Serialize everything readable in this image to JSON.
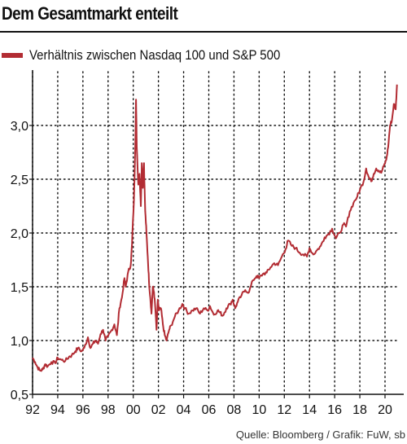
{
  "title": "Dem Gesamtmarkt enteilt",
  "source": "Quelle: Bloomberg / Grafik: FuW, sb",
  "colors": {
    "line": "#b22c33",
    "grid": "#111111",
    "axis": "#111111"
  },
  "chart_data": {
    "type": "line",
    "title": "Dem Gesamtmarkt enteilt",
    "xlabel": "",
    "ylabel": "",
    "xlim": [
      1992,
      2021.1
    ],
    "ylim": [
      0.5,
      3.5
    ],
    "grid": true,
    "legend_position": "top-left",
    "x_ticks": [
      1992,
      1994,
      1996,
      1998,
      2000,
      2002,
      2004,
      2006,
      2008,
      2010,
      2012,
      2014,
      2016,
      2018,
      2020
    ],
    "x_tick_labels": [
      "92",
      "94",
      "96",
      "98",
      "00",
      "02",
      "04",
      "06",
      "08",
      "10",
      "12",
      "14",
      "16",
      "18",
      "20"
    ],
    "y_ticks": [
      0.5,
      1.0,
      1.5,
      2.0,
      2.5,
      3.0
    ],
    "y_tick_labels": [
      "0,5",
      "1,0",
      "1,5",
      "2,0",
      "2,5",
      "3,0"
    ],
    "series": [
      {
        "name": "Verhältnis zwischen Nasdaq 100 und S&P 500",
        "color": "#b22c33",
        "points": [
          [
            1992.0,
            0.84
          ],
          [
            1992.2,
            0.8
          ],
          [
            1992.4,
            0.75
          ],
          [
            1992.6,
            0.72
          ],
          [
            1992.8,
            0.73
          ],
          [
            1993.0,
            0.78
          ],
          [
            1993.2,
            0.76
          ],
          [
            1993.5,
            0.8
          ],
          [
            1993.8,
            0.79
          ],
          [
            1994.0,
            0.84
          ],
          [
            1994.3,
            0.82
          ],
          [
            1994.6,
            0.81
          ],
          [
            1994.9,
            0.85
          ],
          [
            1995.1,
            0.86
          ],
          [
            1995.4,
            0.9
          ],
          [
            1995.6,
            0.93
          ],
          [
            1995.9,
            0.9
          ],
          [
            1996.1,
            0.93
          ],
          [
            1996.4,
            1.03
          ],
          [
            1996.6,
            0.93
          ],
          [
            1996.8,
            0.97
          ],
          [
            1997.0,
            1.0
          ],
          [
            1997.2,
            0.97
          ],
          [
            1997.4,
            1.06
          ],
          [
            1997.6,
            1.1
          ],
          [
            1997.8,
            1.0
          ],
          [
            1998.0,
            1.04
          ],
          [
            1998.3,
            1.1
          ],
          [
            1998.5,
            1.15
          ],
          [
            1998.7,
            1.05
          ],
          [
            1998.9,
            1.3
          ],
          [
            1999.1,
            1.4
          ],
          [
            1999.3,
            1.58
          ],
          [
            1999.4,
            1.5
          ],
          [
            1999.6,
            1.64
          ],
          [
            1999.8,
            1.7
          ],
          [
            1999.9,
            1.9
          ],
          [
            2000.05,
            2.3
          ],
          [
            2000.15,
            2.75
          ],
          [
            2000.22,
            3.24
          ],
          [
            2000.28,
            2.8
          ],
          [
            2000.4,
            2.45
          ],
          [
            2000.5,
            2.55
          ],
          [
            2000.6,
            2.25
          ],
          [
            2000.68,
            2.65
          ],
          [
            2000.76,
            2.42
          ],
          [
            2000.85,
            2.65
          ],
          [
            2000.95,
            2.2
          ],
          [
            2001.05,
            2.0
          ],
          [
            2001.15,
            1.78
          ],
          [
            2001.25,
            1.55
          ],
          [
            2001.35,
            1.4
          ],
          [
            2001.45,
            1.25
          ],
          [
            2001.55,
            1.5
          ],
          [
            2001.65,
            1.45
          ],
          [
            2001.75,
            1.3
          ],
          [
            2001.85,
            1.1
          ],
          [
            2001.95,
            1.38
          ],
          [
            2002.05,
            1.28
          ],
          [
            2002.2,
            1.3
          ],
          [
            2002.35,
            1.15
          ],
          [
            2002.5,
            1.05
          ],
          [
            2002.65,
            1.0
          ],
          [
            2002.85,
            1.1
          ],
          [
            2003.0,
            1.14
          ],
          [
            2003.3,
            1.22
          ],
          [
            2003.6,
            1.28
          ],
          [
            2003.9,
            1.34
          ],
          [
            2004.1,
            1.3
          ],
          [
            2004.4,
            1.25
          ],
          [
            2004.7,
            1.28
          ],
          [
            2005.0,
            1.3
          ],
          [
            2005.3,
            1.25
          ],
          [
            2005.6,
            1.3
          ],
          [
            2005.9,
            1.28
          ],
          [
            2006.1,
            1.32
          ],
          [
            2006.4,
            1.24
          ],
          [
            2006.7,
            1.28
          ],
          [
            2006.9,
            1.26
          ],
          [
            2007.1,
            1.23
          ],
          [
            2007.4,
            1.3
          ],
          [
            2007.7,
            1.34
          ],
          [
            2007.9,
            1.38
          ],
          [
            2008.1,
            1.3
          ],
          [
            2008.3,
            1.36
          ],
          [
            2008.6,
            1.42
          ],
          [
            2008.9,
            1.47
          ],
          [
            2009.2,
            1.45
          ],
          [
            2009.5,
            1.56
          ],
          [
            2009.8,
            1.6
          ],
          [
            2010.0,
            1.58
          ],
          [
            2010.3,
            1.62
          ],
          [
            2010.6,
            1.63
          ],
          [
            2010.9,
            1.68
          ],
          [
            2011.2,
            1.72
          ],
          [
            2011.5,
            1.7
          ],
          [
            2011.8,
            1.78
          ],
          [
            2012.1,
            1.85
          ],
          [
            2012.3,
            1.93
          ],
          [
            2012.6,
            1.88
          ],
          [
            2012.9,
            1.86
          ],
          [
            2013.2,
            1.82
          ],
          [
            2013.5,
            1.8
          ],
          [
            2013.8,
            1.78
          ],
          [
            2014.0,
            1.86
          ],
          [
            2014.3,
            1.8
          ],
          [
            2014.6,
            1.84
          ],
          [
            2014.9,
            1.88
          ],
          [
            2015.2,
            1.96
          ],
          [
            2015.5,
            1.99
          ],
          [
            2015.8,
            2.04
          ],
          [
            2016.1,
            1.95
          ],
          [
            2016.4,
            2.0
          ],
          [
            2016.7,
            2.08
          ],
          [
            2016.9,
            2.06
          ],
          [
            2017.2,
            2.2
          ],
          [
            2017.5,
            2.28
          ],
          [
            2017.8,
            2.34
          ],
          [
            2018.0,
            2.4
          ],
          [
            2018.3,
            2.48
          ],
          [
            2018.5,
            2.6
          ],
          [
            2018.7,
            2.52
          ],
          [
            2018.9,
            2.48
          ],
          [
            2019.1,
            2.55
          ],
          [
            2019.3,
            2.6
          ],
          [
            2019.5,
            2.58
          ],
          [
            2019.7,
            2.56
          ],
          [
            2019.9,
            2.62
          ],
          [
            2020.1,
            2.68
          ],
          [
            2020.25,
            2.8
          ],
          [
            2020.4,
            3.0
          ],
          [
            2020.55,
            3.05
          ],
          [
            2020.7,
            3.2
          ],
          [
            2020.85,
            3.15
          ],
          [
            2020.95,
            3.38
          ]
        ]
      }
    ]
  }
}
